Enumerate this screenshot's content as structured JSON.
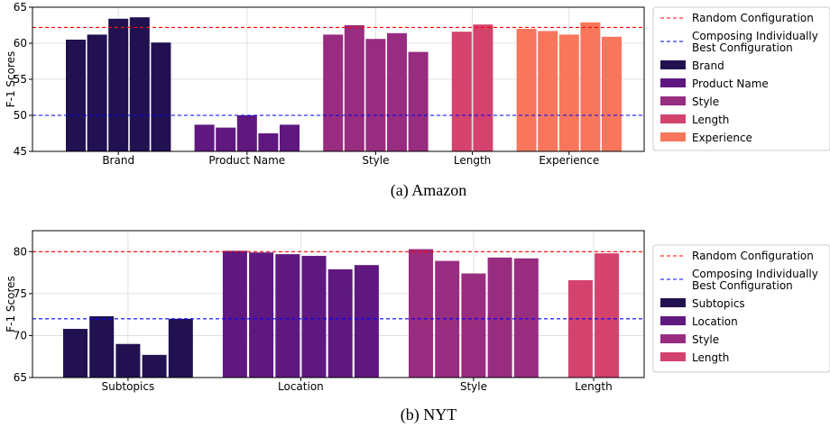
{
  "chart_data": [
    {
      "type": "bar",
      "caption": "(a) Amazon",
      "ylabel": "F-1 Scores",
      "ylim": [
        45,
        65
      ],
      "yticks": [
        45,
        50,
        55,
        60,
        65
      ],
      "grid": true,
      "legend_position": "right",
      "groups": [
        {
          "name": "Brand",
          "values": [
            60.5,
            61.2,
            63.4,
            63.6,
            60.1
          ]
        },
        {
          "name": "Product Name",
          "values": [
            48.7,
            48.3,
            50.0,
            47.5,
            48.7
          ]
        },
        {
          "name": "Style",
          "values": [
            61.2,
            62.5,
            60.6,
            61.4,
            58.8
          ]
        },
        {
          "name": "Length",
          "values": [
            61.6,
            62.6
          ]
        },
        {
          "name": "Experience",
          "values": [
            62.0,
            61.7,
            61.2,
            62.9,
            60.9
          ]
        }
      ],
      "reference_lines": [
        {
          "name": "Random Configuration",
          "value": 62.2,
          "color": "#ff0000"
        },
        {
          "name": "Composing Individually Best Configuration",
          "value": 50.0,
          "color": "#0000ff"
        }
      ],
      "colors": [
        "#221150",
        "#5f187f",
        "#982d80",
        "#d3436e",
        "#f8765c"
      ]
    },
    {
      "type": "bar",
      "caption": "(b) NYT",
      "ylabel": "F-1 Scores",
      "ylim": [
        65,
        82.5
      ],
      "yticks": [
        65,
        70,
        75,
        80
      ],
      "grid": true,
      "legend_position": "right",
      "groups": [
        {
          "name": "Subtopics",
          "values": [
            70.8,
            72.3,
            69.0,
            67.7,
            72.0
          ]
        },
        {
          "name": "Location",
          "values": [
            80.1,
            79.9,
            79.7,
            79.5,
            77.9,
            78.4
          ]
        },
        {
          "name": "Style",
          "values": [
            80.3,
            78.9,
            77.4,
            79.3,
            79.2
          ]
        },
        {
          "name": "Length",
          "values": [
            76.6,
            79.8
          ]
        }
      ],
      "reference_lines": [
        {
          "name": "Random Configuration",
          "value": 80.0,
          "color": "#ff0000"
        },
        {
          "name": "Composing Individually Best Configuration",
          "value": 72.0,
          "color": "#0000ff"
        }
      ],
      "colors": [
        "#221150",
        "#5f187f",
        "#982d80",
        "#d3436e"
      ]
    }
  ]
}
